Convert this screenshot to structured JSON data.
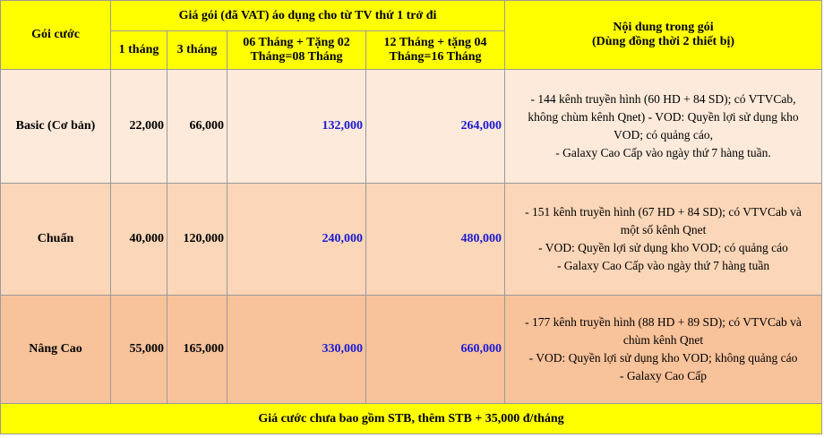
{
  "header": {
    "goi_cuoc": "Gói cước",
    "price_group": "Giá gói (đã VAT) áo dụng cho từ TV thứ 1 trở đi",
    "col_1": "1 tháng",
    "col_3": "3 tháng",
    "col_6_line1": "06 Tháng + Tặng 02",
    "col_6_line2": "Tháng=08 Tháng",
    "col_12_line1": "12 Tháng + tặng 04",
    "col_12_line2": "Tháng=16 Tháng",
    "content_line1": "Nội dung trong gói",
    "content_line2": "(Dùng đồng thời 2 thiết bị)"
  },
  "rows": [
    {
      "name": "Basic (Cơ bản)",
      "m1": "22,000",
      "m3": "66,000",
      "m6": "132,000",
      "m12": "264,000",
      "content": [
        "- 144 kênh truyền hình (60 HD + 84 SD); có VTVCab,",
        "không chùm kênh Qnet) - VOD: Quyền lợi sử dụng  kho",
        "VOD; có quảng cáo,",
        "- Galaxy Cao Cấp vào ngày thứ 7 hàng tuần."
      ]
    },
    {
      "name": "Chuẩn",
      "m1": "40,000",
      "m3": "120,000",
      "m6": "240,000",
      "m12": "480,000",
      "content": [
        "- 151 kênh truyền hình (67 HD + 84 SD); có VTVCab và",
        "một số kênh Qnet",
        "- VOD: Quyền lợi sử dụng kho VOD; có quảng cáo",
        "- Galaxy Cao Cấp vào ngày thứ 7 hàng tuần"
      ]
    },
    {
      "name": "Nâng Cao",
      "m1": "55,000",
      "m3": "165,000",
      "m6": "330,000",
      "m12": "660,000",
      "content": [
        "- 177 kênh truyền hình (88 HD + 89 SD); có VTVCab và",
        "chùm kênh Qnet",
        "- VOD: Quyền lợi sử dụng kho VOD; không quảng cáo",
        "- Galaxy Cao Cấp"
      ]
    }
  ],
  "footer": "Giá cước chưa bao gồm STB, thêm STB + 35,000 đ/tháng",
  "colors": {
    "header_bg": "#ffff00",
    "row1_bg": "#fdeada",
    "row2_bg": "#fbd6b8",
    "row3_bg": "#f8c29a",
    "long_term_price_text": "#1a1ad6"
  }
}
